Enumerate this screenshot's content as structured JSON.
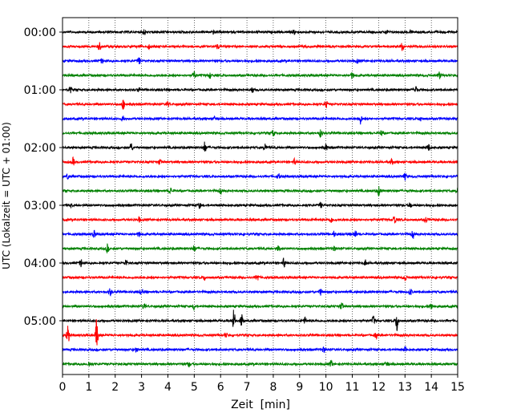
{
  "chart_data": {
    "type": "line",
    "title": "",
    "xlabel": "Zeit  [min]",
    "ylabel": "UTC (Lokalzeit = UTC + 01:00)",
    "xlim": [
      0,
      15
    ],
    "x_ticks": [
      0,
      1,
      2,
      3,
      4,
      5,
      6,
      7,
      8,
      9,
      10,
      11,
      12,
      13,
      14,
      15
    ],
    "x_tick_labels": [
      "0",
      "1",
      "2",
      "3",
      "4",
      "5",
      "6",
      "7",
      "8",
      "9",
      "10",
      "11",
      "12",
      "13",
      "14",
      "15"
    ],
    "y_tick_labels": [
      "00:00",
      "01:00",
      "02:00",
      "03:00",
      "04:00",
      "05:00"
    ],
    "y_tick_rows": [
      0,
      4,
      8,
      12,
      16,
      20
    ],
    "trace_interval_minutes": 15,
    "vertical_grid": "dotted",
    "trace_colors": [
      "#000000",
      "#ff0000",
      "#0000ff",
      "#008000"
    ],
    "traces": [
      {
        "start": "00:00",
        "color": "#000000",
        "events": [
          [
            3.1,
            0.45
          ],
          [
            5.7,
            0.3
          ],
          [
            8.8,
            0.35
          ],
          [
            12.3,
            0.35
          ],
          [
            13.2,
            0.3
          ]
        ]
      },
      {
        "start": "00:15",
        "color": "#ff0000",
        "events": [
          [
            1.4,
            0.55
          ],
          [
            3.3,
            0.3
          ],
          [
            5.9,
            0.35
          ],
          [
            12.9,
            0.55
          ]
        ]
      },
      {
        "start": "00:30",
        "color": "#0000ff",
        "events": [
          [
            1.5,
            0.35
          ],
          [
            2.9,
            0.5
          ],
          [
            11.2,
            0.3
          ]
        ]
      },
      {
        "start": "00:45",
        "color": "#008000",
        "events": [
          [
            5.0,
            0.55
          ],
          [
            5.6,
            0.35
          ],
          [
            11.0,
            0.45
          ],
          [
            14.3,
            0.5
          ]
        ]
      },
      {
        "start": "01:00",
        "color": "#000000",
        "events": [
          [
            0.3,
            0.4
          ],
          [
            2.9,
            0.35
          ],
          [
            7.2,
            0.45
          ],
          [
            13.4,
            0.5
          ]
        ]
      },
      {
        "start": "01:15",
        "color": "#ff0000",
        "events": [
          [
            2.3,
            0.7
          ],
          [
            4.0,
            0.35
          ],
          [
            10.0,
            0.55
          ]
        ]
      },
      {
        "start": "01:30",
        "color": "#0000ff",
        "events": [
          [
            2.3,
            0.4
          ],
          [
            5.8,
            0.3
          ],
          [
            11.3,
            0.75
          ],
          [
            13.6,
            0.35
          ]
        ]
      },
      {
        "start": "01:45",
        "color": "#008000",
        "events": [
          [
            8.0,
            0.45
          ],
          [
            9.8,
            0.5
          ],
          [
            12.1,
            0.35
          ]
        ]
      },
      {
        "start": "02:00",
        "color": "#000000",
        "events": [
          [
            2.6,
            0.7
          ],
          [
            5.4,
            0.75
          ],
          [
            7.7,
            0.65
          ],
          [
            10.0,
            0.45
          ],
          [
            13.9,
            0.45
          ]
        ]
      },
      {
        "start": "02:15",
        "color": "#ff0000",
        "events": [
          [
            0.4,
            0.55
          ],
          [
            3.7,
            0.35
          ],
          [
            8.8,
            0.35
          ],
          [
            12.5,
            0.35
          ]
        ]
      },
      {
        "start": "02:30",
        "color": "#0000ff",
        "events": [
          [
            0.2,
            0.4
          ],
          [
            8.2,
            0.35
          ],
          [
            13.0,
            0.45
          ]
        ]
      },
      {
        "start": "02:45",
        "color": "#008000",
        "events": [
          [
            4.1,
            0.45
          ],
          [
            6.0,
            0.45
          ],
          [
            12.0,
            0.7
          ],
          [
            15.0,
            0.45
          ]
        ]
      },
      {
        "start": "03:00",
        "color": "#000000",
        "events": [
          [
            0.3,
            0.35
          ],
          [
            5.2,
            0.35
          ],
          [
            9.8,
            0.35
          ],
          [
            13.2,
            0.35
          ]
        ]
      },
      {
        "start": "03:15",
        "color": "#ff0000",
        "events": [
          [
            2.9,
            0.35
          ],
          [
            10.2,
            0.35
          ],
          [
            12.6,
            0.7
          ],
          [
            13.8,
            0.4
          ]
        ]
      },
      {
        "start": "03:30",
        "color": "#0000ff",
        "events": [
          [
            1.2,
            0.45
          ],
          [
            2.9,
            0.35
          ],
          [
            10.3,
            0.35
          ],
          [
            11.1,
            0.6
          ],
          [
            13.3,
            0.6
          ]
        ]
      },
      {
        "start": "03:45",
        "color": "#008000",
        "events": [
          [
            1.7,
            0.6
          ],
          [
            5.0,
            0.4
          ],
          [
            8.2,
            0.45
          ],
          [
            10.3,
            0.4
          ]
        ]
      },
      {
        "start": "04:00",
        "color": "#000000",
        "events": [
          [
            0.7,
            0.55
          ],
          [
            2.4,
            0.45
          ],
          [
            8.4,
            0.6
          ],
          [
            11.5,
            0.4
          ]
        ]
      },
      {
        "start": "04:15",
        "color": "#ff0000",
        "events": [
          [
            5.4,
            0.3
          ],
          [
            7.4,
            0.55
          ],
          [
            13.0,
            0.45
          ]
        ]
      },
      {
        "start": "04:30",
        "color": "#0000ff",
        "events": [
          [
            1.8,
            0.55
          ],
          [
            3.0,
            0.45
          ],
          [
            9.8,
            0.45
          ],
          [
            13.2,
            0.45
          ]
        ]
      },
      {
        "start": "04:45",
        "color": "#008000",
        "events": [
          [
            3.1,
            0.45
          ],
          [
            5.0,
            0.45
          ],
          [
            10.6,
            0.5
          ],
          [
            14.0,
            0.45
          ]
        ]
      },
      {
        "start": "05:00",
        "color": "#000000",
        "events": [
          [
            6.5,
            1.6
          ],
          [
            6.8,
            0.9
          ],
          [
            9.2,
            0.45
          ],
          [
            11.8,
            0.6
          ],
          [
            12.7,
            1.5
          ]
        ]
      },
      {
        "start": "05:15",
        "color": "#ff0000",
        "events": [
          [
            0.2,
            1.4
          ],
          [
            1.3,
            2.2
          ],
          [
            6.2,
            0.35
          ],
          [
            11.9,
            0.4
          ]
        ]
      },
      {
        "start": "05:30",
        "color": "#0000ff",
        "events": [
          [
            2.8,
            0.35
          ],
          [
            9.9,
            0.45
          ],
          [
            13.0,
            0.45
          ]
        ]
      },
      {
        "start": "05:45",
        "color": "#008000",
        "events": [
          [
            1.0,
            0.35
          ],
          [
            4.8,
            0.35
          ],
          [
            10.2,
            0.4
          ],
          [
            12.3,
            0.4
          ]
        ]
      }
    ]
  }
}
